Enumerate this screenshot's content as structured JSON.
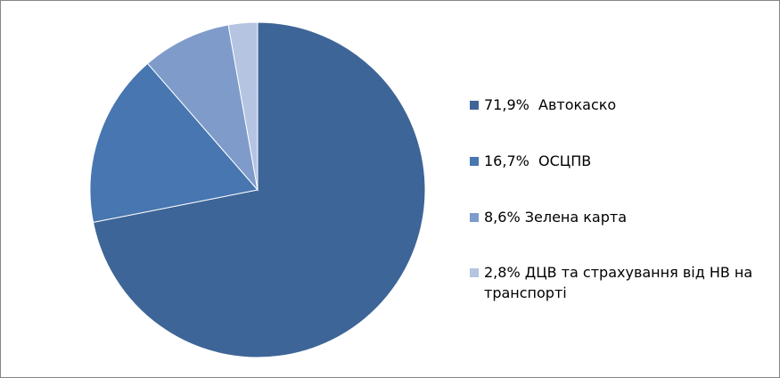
{
  "chart_data": {
    "type": "pie",
    "categories": [
      "71,9%  Автокаско",
      "16,7%  ОСЦПВ",
      "8,6% Зелена карта",
      "2,8% ДЦВ та страхування від НВ на транспорті"
    ],
    "values": [
      71.9,
      16.7,
      8.6,
      2.8
    ],
    "colors": [
      "#3e6597",
      "#4776b0",
      "#7e9bca",
      "#b4c4e1"
    ],
    "legend": "right"
  }
}
